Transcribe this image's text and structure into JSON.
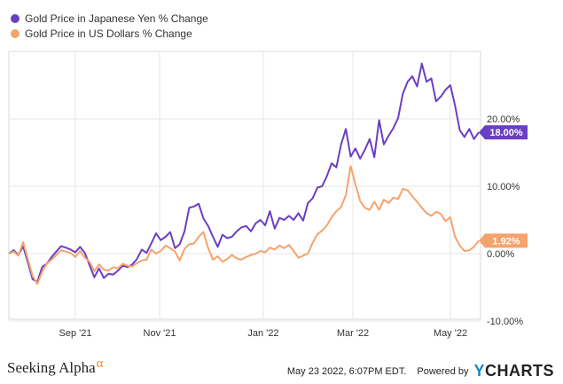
{
  "legend": [
    {
      "label": "Gold Price in Japanese Yen % Change",
      "color": "#6a3fc4"
    },
    {
      "label": "Gold Price in US Dollars % Change",
      "color": "#f5a36c"
    }
  ],
  "footer": {
    "brand": "Seeking Alpha",
    "brand_mark": "α",
    "timestamp": "May 23 2022, 6:07PM EDT.",
    "powered_by": "Powered by",
    "ycharts_y": "Y",
    "ycharts_rest": "CHARTS"
  },
  "chart_data": {
    "type": "line",
    "x_ticks": [
      "Sep '21",
      "Nov '21",
      "Jan '22",
      "Mar '22",
      "May '22"
    ],
    "y_ticks": [
      "-10.00%",
      "0.00%",
      "10.00%",
      "20.00%"
    ],
    "ylim": [
      -10,
      30
    ],
    "grid": true,
    "legend_position": "top-left",
    "series": [
      {
        "name": "Gold Price in Japanese Yen % Change",
        "color": "#6a3fc4",
        "end_label": "18.00%",
        "values": [
          0,
          0.5,
          -0.2,
          1.1,
          -1.3,
          -3.8,
          -4.2,
          -2.0,
          -1.5,
          -0.5,
          0.3,
          1.1,
          0.9,
          0.6,
          0.2,
          1.0,
          0.1,
          -1.7,
          -3.5,
          -2.2,
          -3.6,
          -3.0,
          -3.1,
          -2.5,
          -1.8,
          -2.0,
          -1.6,
          -0.8,
          0.6,
          0.1,
          1.5,
          3.0,
          2.0,
          2.5,
          3.2,
          0.8,
          1.4,
          3.3,
          6.8,
          7.0,
          7.4,
          5.2,
          4.1,
          2.5,
          1.0,
          2.8,
          2.3,
          2.5,
          3.3,
          3.9,
          4.1,
          3.3,
          4.5,
          5.0,
          4.2,
          6.3,
          3.7,
          5.3,
          5.0,
          5.6,
          5.0,
          6.0,
          4.9,
          7.5,
          8.2,
          9.8,
          10.0,
          11.5,
          13.4,
          12.8,
          16.2,
          18.5,
          14.4,
          15.6,
          14.1,
          15.4,
          17.0,
          14.3,
          19.8,
          16.2,
          17.5,
          18.6,
          20.1,
          23.7,
          25.5,
          26.3,
          24.8,
          28.2,
          25.5,
          26.0,
          22.6,
          23.3,
          24.3,
          25.0,
          22.0,
          18.3,
          17.3,
          18.5,
          17.0,
          18.0
        ]
      },
      {
        "name": "Gold Price in US Dollars % Change",
        "color": "#f5a36c",
        "end_label": "1.92%",
        "values": [
          0,
          0.3,
          -0.3,
          1.7,
          -0.8,
          -3.3,
          -4.5,
          -2.7,
          -1.5,
          -0.9,
          -0.2,
          0.5,
          0.3,
          0.1,
          -0.5,
          0.4,
          -0.6,
          -1.2,
          -2.6,
          -1.6,
          -2.4,
          -2.5,
          -2.0,
          -2.2,
          -1.5,
          -1.8,
          -1.9,
          -1.4,
          -1.0,
          -0.9,
          0.6,
          0.0,
          0.4,
          1.2,
          0.8,
          0.3,
          -1.0,
          0.7,
          1.4,
          1.5,
          2.5,
          3.2,
          0.8,
          -0.9,
          -0.4,
          -1.2,
          -0.8,
          -0.2,
          -0.7,
          -0.9,
          -0.5,
          -0.2,
          0.0,
          0.4,
          0.2,
          0.9,
          0.6,
          1.2,
          0.8,
          1.3,
          0.4,
          -0.6,
          -0.3,
          0.0,
          1.6,
          2.9,
          3.4,
          4.2,
          5.4,
          6.3,
          6.9,
          8.7,
          13.0,
          10.3,
          7.8,
          6.8,
          6.5,
          7.7,
          6.5,
          8.0,
          7.5,
          8.3,
          8.1,
          9.6,
          9.4,
          8.5,
          7.7,
          6.8,
          6.0,
          5.6,
          6.2,
          5.9,
          4.8,
          5.4,
          2.5,
          1.2,
          0.4,
          0.5,
          1.0,
          1.92
        ]
      }
    ]
  }
}
